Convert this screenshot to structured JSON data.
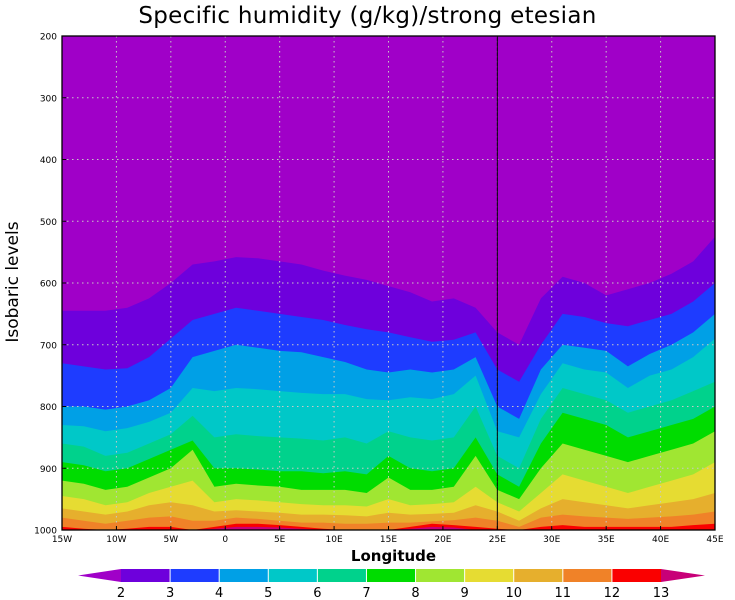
{
  "chart_data": {
    "type": "filled-contour",
    "title": "Specific humidity (g/kg)/strong etesian",
    "xlabel": "Longitude",
    "ylabel": "Isobaric levels",
    "xlim": [
      -15,
      45
    ],
    "ylim": [
      1000,
      200
    ],
    "x_ticks": [
      -15,
      -10,
      -5,
      0,
      5,
      10,
      15,
      20,
      25,
      30,
      35,
      40,
      45
    ],
    "x_tick_labels": [
      "15W",
      "10W",
      "5W",
      "0",
      "5E",
      "10E",
      "15E",
      "20E",
      "25E",
      "30E",
      "35E",
      "40E",
      "45E"
    ],
    "y_ticks": [
      200,
      300,
      400,
      500,
      600,
      700,
      800,
      900,
      1000
    ],
    "y_tick_labels": [
      "200",
      "300",
      "400",
      "500",
      "600",
      "700",
      "800",
      "900",
      "1000"
    ],
    "grid": true,
    "marker_line_x": 25,
    "contour_levels": [
      2,
      3,
      4,
      5,
      6,
      7,
      8,
      9,
      10,
      11,
      12,
      13
    ],
    "contour_colors": [
      "#a000c8",
      "#6e00dc",
      "#1e3cff",
      "#00a0e6",
      "#00c8c8",
      "#00d28c",
      "#00dc00",
      "#a0e632",
      "#e6dc32",
      "#e6af2d",
      "#f08228",
      "#fa0000",
      "#c80078"
    ],
    "x": [
      -15,
      -13,
      -11,
      -9,
      -7,
      -5,
      -3,
      -1,
      1,
      3,
      5,
      7,
      9,
      11,
      13,
      15,
      17,
      19,
      21,
      23,
      25,
      27,
      29,
      31,
      33,
      35,
      37,
      39,
      41,
      43,
      45
    ],
    "isolines": {
      "2": [
        645,
        645,
        645,
        640,
        625,
        600,
        570,
        565,
        558,
        560,
        565,
        570,
        580,
        588,
        595,
        605,
        615,
        630,
        625,
        640,
        680,
        700,
        625,
        590,
        600,
        620,
        610,
        600,
        585,
        565,
        525
      ],
      "3": [
        730,
        735,
        740,
        738,
        720,
        690,
        660,
        650,
        640,
        645,
        650,
        655,
        660,
        668,
        675,
        680,
        688,
        695,
        692,
        680,
        740,
        760,
        700,
        650,
        655,
        665,
        670,
        660,
        650,
        630,
        600
      ],
      "4": [
        800,
        800,
        805,
        800,
        790,
        770,
        720,
        710,
        700,
        705,
        710,
        712,
        720,
        728,
        740,
        745,
        740,
        745,
        740,
        720,
        800,
        820,
        740,
        700,
        705,
        710,
        735,
        715,
        700,
        680,
        650
      ],
      "5": [
        830,
        832,
        840,
        835,
        825,
        810,
        770,
        775,
        770,
        772,
        775,
        778,
        780,
        780,
        788,
        790,
        785,
        788,
        780,
        750,
        840,
        850,
        780,
        730,
        740,
        745,
        770,
        750,
        740,
        720,
        690
      ],
      "6": [
        860,
        865,
        880,
        875,
        860,
        845,
        815,
        850,
        845,
        848,
        850,
        852,
        855,
        850,
        860,
        840,
        850,
        855,
        850,
        800,
        880,
        900,
        820,
        770,
        780,
        790,
        810,
        800,
        790,
        775,
        760
      ],
      "7": [
        890,
        895,
        905,
        900,
        885,
        870,
        855,
        900,
        900,
        902,
        905,
        905,
        908,
        905,
        910,
        880,
        900,
        905,
        900,
        850,
        910,
        930,
        860,
        810,
        820,
        830,
        850,
        840,
        830,
        820,
        800
      ],
      "8": [
        920,
        925,
        935,
        930,
        915,
        900,
        870,
        930,
        925,
        928,
        930,
        935,
        935,
        935,
        940,
        915,
        935,
        935,
        930,
        880,
        935,
        950,
        900,
        860,
        870,
        880,
        890,
        880,
        870,
        860,
        840
      ],
      "9": [
        945,
        950,
        960,
        955,
        940,
        930,
        920,
        955,
        950,
        952,
        955,
        958,
        960,
        960,
        962,
        950,
        960,
        958,
        955,
        930,
        955,
        970,
        940,
        910,
        920,
        930,
        940,
        930,
        920,
        910,
        890
      ],
      "10": [
        965,
        970,
        975,
        970,
        960,
        955,
        960,
        970,
        968,
        970,
        972,
        975,
        975,
        976,
        978,
        972,
        975,
        974,
        972,
        960,
        970,
        985,
        965,
        950,
        955,
        960,
        965,
        960,
        955,
        950,
        940
      ],
      "11": [
        980,
        985,
        990,
        985,
        980,
        978,
        985,
        985,
        980,
        982,
        985,
        988,
        988,
        990,
        990,
        988,
        988,
        986,
        984,
        980,
        985,
        995,
        980,
        975,
        978,
        980,
        982,
        980,
        978,
        975,
        970
      ],
      "12": [
        995,
        998,
        1000,
        998,
        995,
        995,
        1000,
        995,
        990,
        990,
        992,
        995,
        998,
        1000,
        1000,
        1000,
        995,
        990,
        992,
        995,
        998,
        1000,
        995,
        992,
        995,
        995,
        995,
        995,
        995,
        992,
        990
      ],
      "13": [
        1000,
        1000,
        1000,
        1000,
        1000,
        1000,
        1000,
        998,
        995,
        995,
        996,
        998,
        1000,
        1000,
        1000,
        1000,
        998,
        995,
        996,
        1000,
        1000,
        1000,
        1000,
        1000,
        1000,
        1000,
        1000,
        1000,
        1000,
        1000,
        1000
      ]
    },
    "colorbar": {
      "labels": [
        "2",
        "3",
        "4",
        "5",
        "6",
        "7",
        "8",
        "9",
        "10",
        "11",
        "12",
        "13"
      ]
    }
  }
}
